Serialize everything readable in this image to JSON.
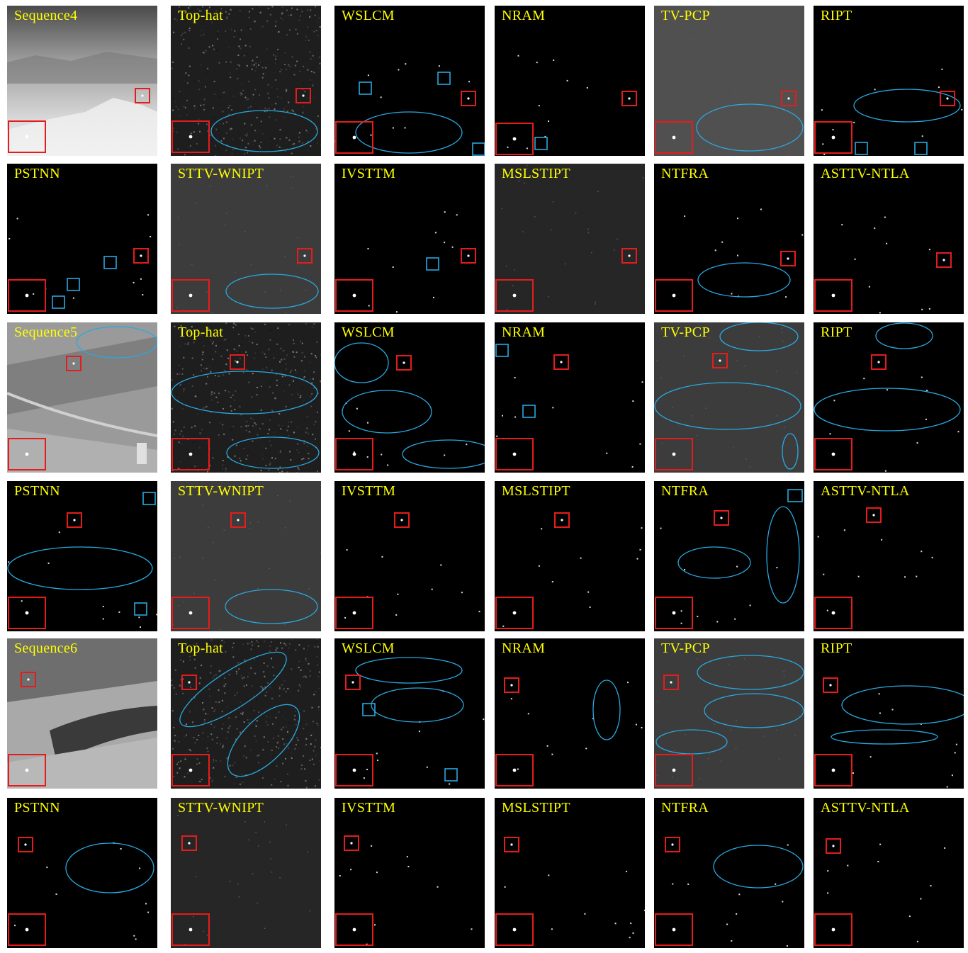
{
  "colors": {
    "title_text": "#ffff00",
    "target_box": "#e61c1c",
    "false_alarm_marker": "#29a9e1",
    "panel_background": "#000000"
  },
  "panels": [
    {
      "title": "Sequence4",
      "bg": "scene4"
    },
    {
      "title": "Top-hat",
      "bg": "noise"
    },
    {
      "title": "WSLCM",
      "bg": "black"
    },
    {
      "title": "NRAM",
      "bg": "black"
    },
    {
      "title": "TV-PCP",
      "bg": "grayplain"
    },
    {
      "title": "RIPT",
      "bg": "black"
    },
    {
      "title": "PSTNN",
      "bg": "black"
    },
    {
      "title": "STTV-WNIPT",
      "bg": "gray"
    },
    {
      "title": "IVSTTM",
      "bg": "black"
    },
    {
      "title": "MSLSTIPT",
      "bg": "darkgray"
    },
    {
      "title": "NTFRA",
      "bg": "black"
    },
    {
      "title": "ASTTV-NTLA",
      "bg": "black"
    },
    {
      "title": "Sequence5",
      "bg": "scene5"
    },
    {
      "title": "Top-hat",
      "bg": "noise"
    },
    {
      "title": "WSLCM",
      "bg": "black"
    },
    {
      "title": "NRAM",
      "bg": "black"
    },
    {
      "title": "TV-PCP",
      "bg": "gray"
    },
    {
      "title": "RIPT",
      "bg": "black"
    },
    {
      "title": "PSTNN",
      "bg": "black"
    },
    {
      "title": "STTV-WNIPT",
      "bg": "gray"
    },
    {
      "title": "IVSTTM",
      "bg": "black"
    },
    {
      "title": "MSLSTIPT",
      "bg": "black"
    },
    {
      "title": "NTFRA",
      "bg": "black"
    },
    {
      "title": "ASTTV-NTLA",
      "bg": "black"
    },
    {
      "title": "Sequence6",
      "bg": "scene6"
    },
    {
      "title": "Top-hat",
      "bg": "noise"
    },
    {
      "title": "WSLCM",
      "bg": "black"
    },
    {
      "title": "NRAM",
      "bg": "black"
    },
    {
      "title": "TV-PCP",
      "bg": "gray"
    },
    {
      "title": "RIPT",
      "bg": "black"
    },
    {
      "title": "PSTNN",
      "bg": "black"
    },
    {
      "title": "STTV-WNIPT",
      "bg": "darkgray"
    },
    {
      "title": "IVSTTM",
      "bg": "black"
    },
    {
      "title": "MSLSTIPT",
      "bg": "black"
    },
    {
      "title": "NTFRA",
      "bg": "black"
    },
    {
      "title": "ASTTV-NTLA",
      "bg": "black"
    }
  ]
}
